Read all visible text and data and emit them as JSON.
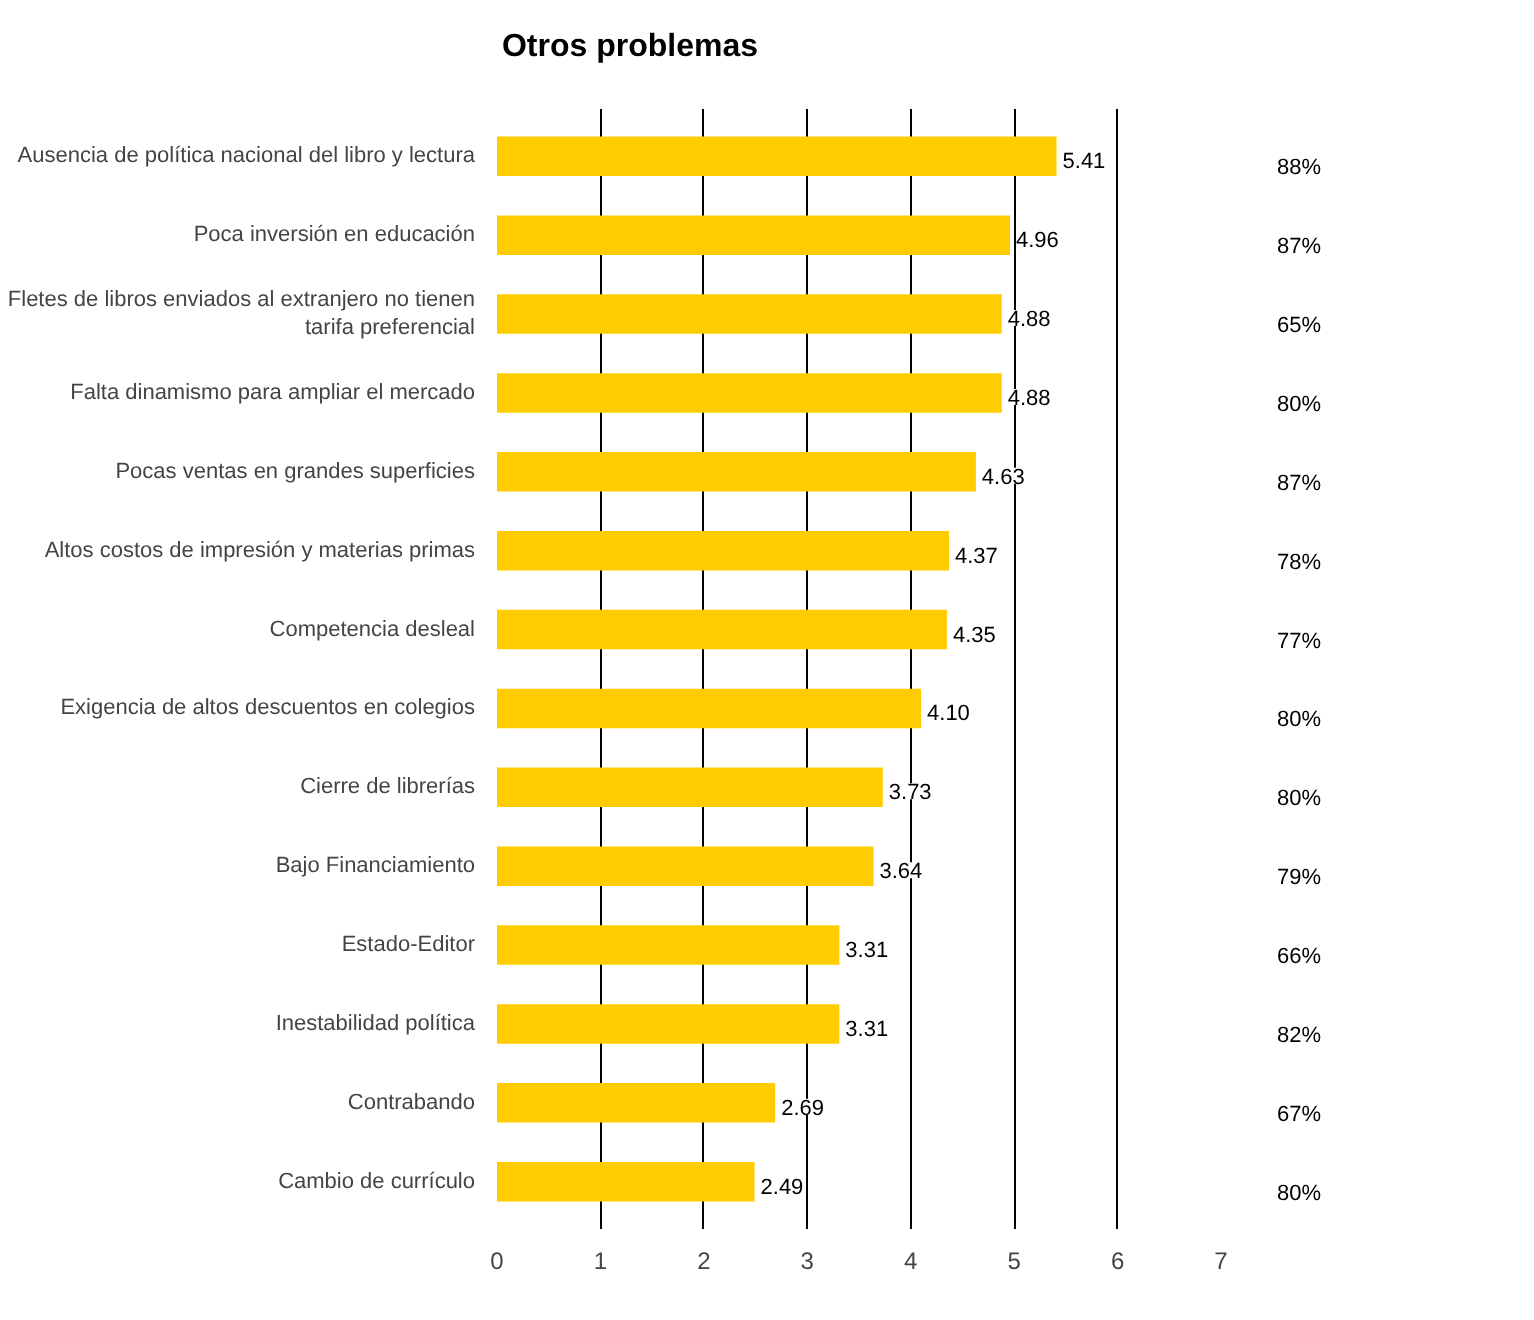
{
  "chart_data": {
    "type": "bar",
    "orientation": "horizontal",
    "title": "Otros problemas",
    "categories": [
      "Ausencia de política nacional del libro y lectura",
      "Poca inversión en educación",
      "Fletes de libros enviados al extranjero no tienen tarifa preferencial",
      "Falta dinamismo para ampliar el mercado",
      "Pocas ventas en grandes superficies",
      "Altos costos de impresión y materias primas",
      "Competencia desleal",
      "Exigencia de altos descuentos en colegios",
      "Cierre de librerías",
      "Bajo Financiamiento",
      "Estado-Editor",
      "Inestabilidad política",
      "Contrabando",
      "Cambio de currículo"
    ],
    "values": [
      5.41,
      4.96,
      4.88,
      4.88,
      4.63,
      4.37,
      4.35,
      4.1,
      3.73,
      3.64,
      3.31,
      3.31,
      2.69,
      2.49
    ],
    "value_labels": [
      "5.41",
      "4.96",
      "4.88",
      "4.88",
      "4.63",
      "4.37",
      "4.35",
      "4.10",
      "3.73",
      "3.64",
      "3.31",
      "3.31",
      "2.69",
      "2.49"
    ],
    "color": "#ffcc00",
    "annotations": [
      "88%",
      "87%",
      "65%",
      "80%",
      "87%",
      "78%",
      "77%",
      "80%",
      "80%",
      "79%",
      "66%",
      "82%",
      "67%",
      "80%"
    ],
    "xlim": [
      0,
      7
    ],
    "xticks": [
      0,
      1,
      2,
      3,
      4,
      5,
      6,
      7
    ],
    "grid": "x"
  }
}
